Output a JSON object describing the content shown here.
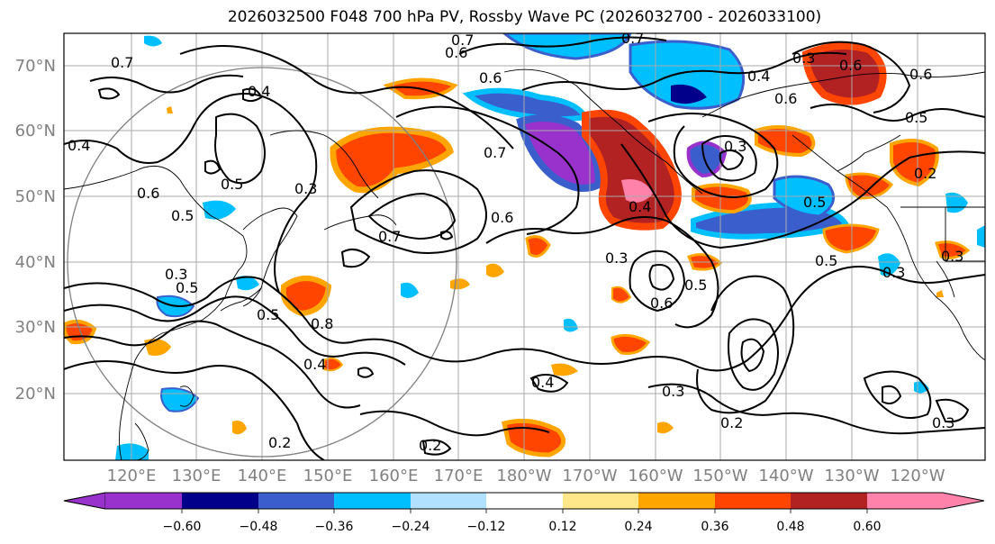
{
  "title": "2026032500 F048 700 hPa PV, Rossby Wave PC (2026032700 - 2026033100)",
  "map": {
    "lat_labels": [
      "70°N",
      "60°N",
      "50°N",
      "40°N",
      "30°N",
      "20°N"
    ],
    "lon_labels": [
      "120°E",
      "130°E",
      "140°E",
      "150°E",
      "160°E",
      "170°E",
      "180°W",
      "170°W",
      "160°W",
      "150°W",
      "140°W",
      "130°W",
      "120°W"
    ],
    "label_color": "#808080",
    "contour_labels": [
      {
        "text": "0.7"
      },
      {
        "text": "0.6"
      },
      {
        "text": "0.7"
      },
      {
        "text": "0.6"
      },
      {
        "text": "0.4"
      },
      {
        "text": "0.7"
      },
      {
        "text": "0.3"
      },
      {
        "text": "0.6"
      },
      {
        "text": "0.5"
      },
      {
        "text": "0.4"
      },
      {
        "text": "0.6"
      },
      {
        "text": "0.3"
      },
      {
        "text": "0.6"
      },
      {
        "text": "0.5"
      },
      {
        "text": "0.7"
      },
      {
        "text": "0.6"
      },
      {
        "text": "0.7"
      },
      {
        "text": "0.4"
      },
      {
        "text": "0.3"
      },
      {
        "text": "0.6"
      },
      {
        "text": "0.5"
      },
      {
        "text": "0.5"
      },
      {
        "text": "0.4"
      },
      {
        "text": "0.5"
      },
      {
        "text": "0.8"
      },
      {
        "text": "0.4"
      },
      {
        "text": "0.2"
      },
      {
        "text": "0.2"
      },
      {
        "text": "0.4"
      },
      {
        "text": "0.3"
      },
      {
        "text": "0.6"
      },
      {
        "text": "0.5"
      },
      {
        "text": "0.3"
      },
      {
        "text": "0.2"
      },
      {
        "text": "0.3"
      },
      {
        "text": "0.3"
      },
      {
        "text": "0.3"
      },
      {
        "text": "0.5"
      },
      {
        "text": "0.5"
      },
      {
        "text": "0.2"
      },
      {
        "text": "0.3"
      }
    ]
  },
  "colorbar": {
    "ticks": [
      "−0.60",
      "−0.48",
      "−0.36",
      "−0.24",
      "−0.12",
      "0.12",
      "0.24",
      "0.36",
      "0.48",
      "0.60"
    ],
    "colors": [
      "#9932CC",
      "#00008B",
      "#3A5FCD",
      "#00BFFF",
      "#B0E2FF",
      "#FFFFFF",
      "#FFE78A",
      "#FFA500",
      "#FF4500",
      "#B22222",
      "#FF82AB"
    ]
  }
}
